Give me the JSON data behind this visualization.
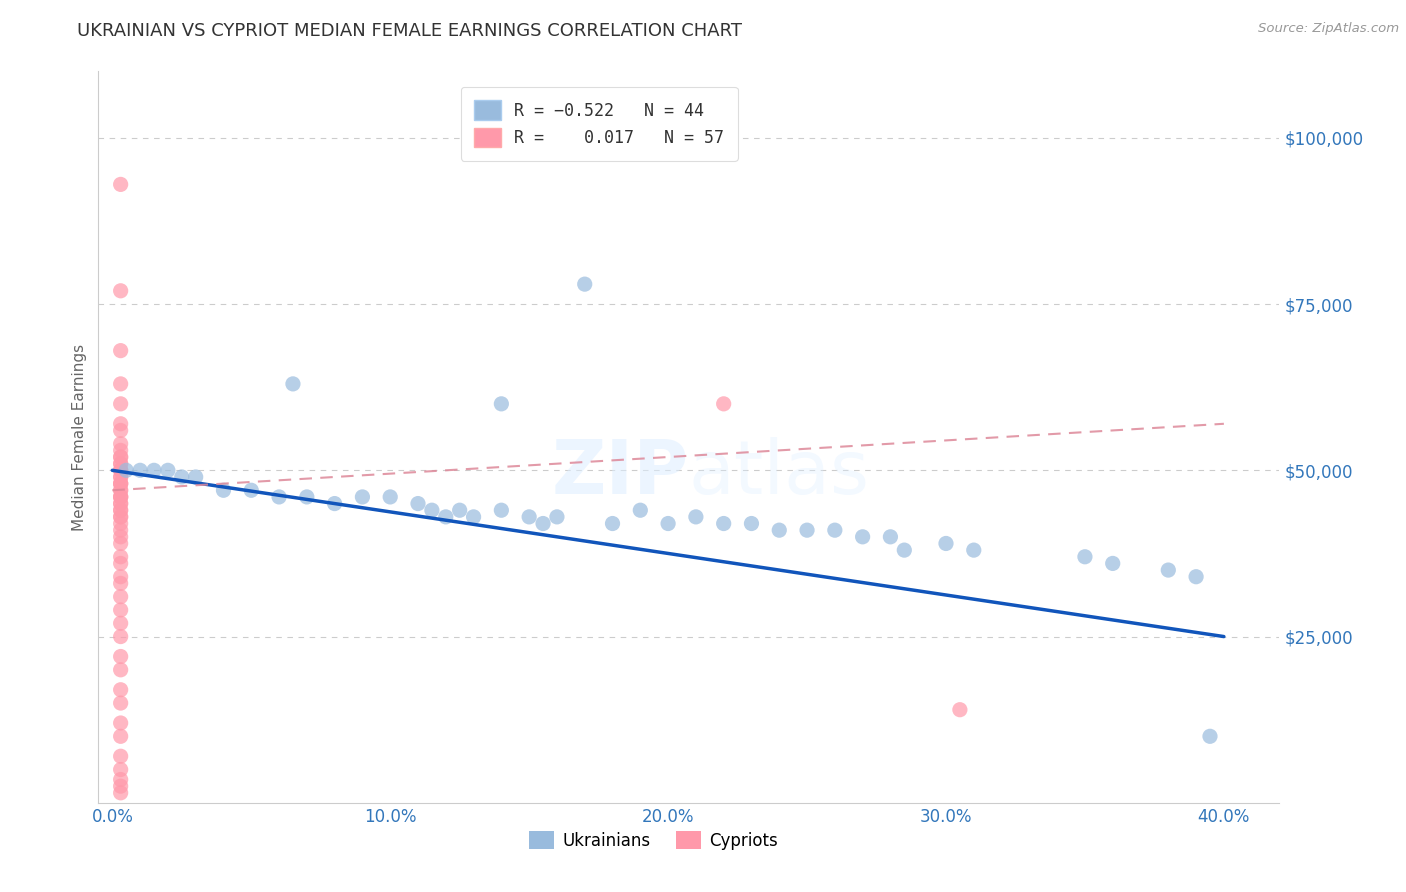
{
  "title": "UKRAINIAN VS CYPRIOT MEDIAN FEMALE EARNINGS CORRELATION CHART",
  "source": "Source: ZipAtlas.com",
  "ylabel": "Median Female Earnings",
  "watermark": "ZIPatlas",
  "xlim": [
    -0.005,
    0.42
  ],
  "ylim": [
    0,
    110000
  ],
  "yticks": [
    0,
    25000,
    50000,
    75000,
    100000
  ],
  "ytick_labels": [
    "",
    "$25,000",
    "$50,000",
    "$75,000",
    "$100,000"
  ],
  "xticks": [
    0.0,
    0.1,
    0.2,
    0.3,
    0.4
  ],
  "xtick_labels": [
    "0.0%",
    "10.0%",
    "20.0%",
    "30.0%",
    "40.0%"
  ],
  "blue_color": "#99BBDD",
  "pink_color": "#FF99AA",
  "blue_line_color": "#1155BB",
  "pink_line_color": "#DD8899",
  "title_color": "#444444",
  "axis_label_color": "#666666",
  "tick_color": "#3377BB",
  "grid_color": "#CCCCCC",
  "blue_scatter_x": [
    0.005,
    0.01,
    0.015,
    0.02,
    0.025,
    0.03,
    0.04,
    0.05,
    0.06,
    0.065,
    0.07,
    0.08,
    0.09,
    0.1,
    0.11,
    0.115,
    0.12,
    0.125,
    0.13,
    0.14,
    0.15,
    0.155,
    0.16,
    0.17,
    0.18,
    0.19,
    0.2,
    0.21,
    0.22,
    0.23,
    0.24,
    0.25,
    0.26,
    0.27,
    0.28,
    0.285,
    0.3,
    0.31,
    0.35,
    0.36,
    0.38,
    0.39,
    0.395,
    0.14
  ],
  "blue_scatter_y": [
    50000,
    50000,
    50000,
    50000,
    49000,
    49000,
    47000,
    47000,
    46000,
    63000,
    46000,
    45000,
    46000,
    46000,
    45000,
    44000,
    43000,
    44000,
    43000,
    44000,
    43000,
    42000,
    43000,
    78000,
    42000,
    44000,
    42000,
    43000,
    42000,
    42000,
    41000,
    41000,
    41000,
    40000,
    40000,
    38000,
    39000,
    38000,
    37000,
    36000,
    35000,
    34000,
    10000,
    60000
  ],
  "pink_scatter_x": [
    0.003,
    0.003,
    0.003,
    0.003,
    0.003,
    0.003,
    0.003,
    0.003,
    0.003,
    0.003,
    0.003,
    0.003,
    0.003,
    0.003,
    0.003,
    0.003,
    0.003,
    0.003,
    0.003,
    0.003,
    0.003,
    0.003,
    0.003,
    0.003,
    0.003,
    0.003,
    0.003,
    0.003,
    0.003,
    0.003,
    0.003,
    0.003,
    0.003,
    0.003,
    0.003,
    0.003,
    0.003,
    0.003,
    0.003,
    0.003,
    0.003,
    0.003,
    0.003,
    0.003,
    0.003,
    0.003,
    0.003,
    0.003,
    0.003,
    0.003,
    0.003,
    0.003,
    0.003,
    0.003,
    0.003,
    0.22,
    0.305
  ],
  "pink_scatter_y": [
    93000,
    77000,
    68000,
    63000,
    60000,
    57000,
    56000,
    54000,
    53000,
    52000,
    51000,
    51000,
    50000,
    50000,
    49000,
    49000,
    48000,
    48000,
    47000,
    47000,
    46000,
    46000,
    45000,
    45000,
    44000,
    44000,
    43000,
    42000,
    41000,
    40000,
    39000,
    37000,
    36000,
    34000,
    33000,
    31000,
    29000,
    27000,
    25000,
    22000,
    20000,
    17000,
    15000,
    12000,
    10000,
    7000,
    5000,
    3500,
    2500,
    1500,
    43000,
    46000,
    48000,
    50000,
    52000,
    60000,
    14000
  ],
  "blue_line_x0": 0.0,
  "blue_line_x1": 0.4,
  "blue_line_y0": 50000,
  "blue_line_y1": 25000,
  "pink_line_x0": 0.0,
  "pink_line_x1": 0.4,
  "pink_line_y0": 47000,
  "pink_line_y1": 57000
}
